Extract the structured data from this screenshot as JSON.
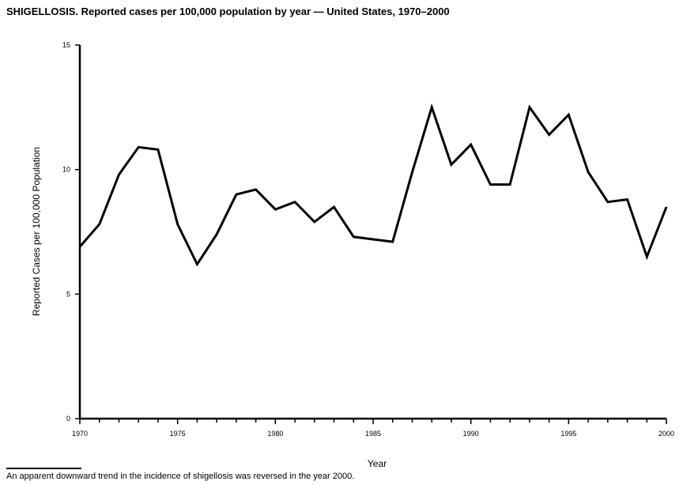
{
  "chart_data": {
    "type": "line",
    "title": "SHIGELLOSIS. Reported cases per 100,000 population by year — United States, 1970–2000",
    "xlabel": "Year",
    "ylabel": "Reported Cases per 100,000 Population",
    "xlim": [
      1970,
      2000
    ],
    "ylim": [
      0,
      15
    ],
    "xticks": [
      1970,
      1975,
      1980,
      1985,
      1990,
      1995,
      2000
    ],
    "yticks": [
      0,
      5,
      10,
      15
    ],
    "grid": false,
    "line_color": "#000000",
    "x": [
      1970,
      1971,
      1972,
      1973,
      1974,
      1975,
      1976,
      1977,
      1978,
      1979,
      1980,
      1981,
      1982,
      1983,
      1984,
      1985,
      1986,
      1987,
      1988,
      1989,
      1990,
      1991,
      1992,
      1993,
      1994,
      1995,
      1996,
      1997,
      1998,
      1999,
      2000
    ],
    "values": [
      6.9,
      7.8,
      9.8,
      10.9,
      10.8,
      7.8,
      6.2,
      7.4,
      9.0,
      9.2,
      8.4,
      8.7,
      7.9,
      8.5,
      7.3,
      7.2,
      7.1,
      9.9,
      12.5,
      10.2,
      11.0,
      9.4,
      9.4,
      12.5,
      11.4,
      12.2,
      9.9,
      8.7,
      8.8,
      6.5,
      8.5
    ]
  },
  "footnote": "An apparent downward trend in the incidence of shigellosis was reversed in the year 2000."
}
